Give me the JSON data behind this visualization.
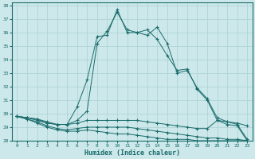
{
  "xlabel": "Humidex (Indice chaleur)",
  "bg_color": "#cce8ea",
  "grid_color": "#b0d4d6",
  "line_color": "#1a6b6b",
  "xlim": [
    -0.5,
    23.5
  ],
  "ylim": [
    28,
    38.2
  ],
  "x_ticks": [
    0,
    1,
    2,
    3,
    4,
    5,
    6,
    7,
    8,
    9,
    10,
    11,
    12,
    13,
    14,
    15,
    16,
    17,
    18,
    19,
    20,
    21,
    22,
    23
  ],
  "y_ticks": [
    28,
    29,
    30,
    31,
    32,
    33,
    34,
    35,
    36,
    37,
    38
  ],
  "hours": [
    0,
    1,
    2,
    3,
    4,
    5,
    6,
    7,
    8,
    9,
    10,
    11,
    12,
    13,
    14,
    15,
    16,
    17,
    18,
    19,
    20,
    21,
    22,
    23
  ],
  "line_main": [
    29.8,
    29.7,
    29.6,
    29.3,
    29.2,
    29.2,
    30.5,
    32.5,
    35.7,
    35.8,
    37.7,
    36.0,
    36.0,
    36.2,
    35.5,
    34.3,
    33.2,
    33.3,
    31.8,
    31.0,
    29.5,
    29.2,
    29.1,
    28.0
  ],
  "line_upper": [
    29.8,
    29.7,
    29.6,
    29.4,
    29.2,
    29.2,
    29.5,
    30.2,
    35.2,
    36.1,
    37.5,
    36.2,
    36.0,
    35.8,
    36.4,
    35.2,
    33.0,
    33.2,
    31.9,
    31.1,
    29.7,
    29.4,
    29.2,
    28.1
  ],
  "line_mid": [
    29.8,
    29.7,
    29.5,
    29.3,
    29.2,
    29.2,
    29.3,
    29.5,
    29.5,
    29.5,
    29.5,
    29.5,
    29.5,
    29.4,
    29.3,
    29.2,
    29.1,
    29.0,
    28.9,
    28.9,
    29.5,
    29.4,
    29.3,
    29.1
  ],
  "line_low": [
    29.8,
    29.6,
    29.4,
    29.1,
    28.9,
    28.8,
    28.9,
    29.0,
    29.0,
    29.0,
    29.0,
    29.0,
    28.9,
    28.8,
    28.7,
    28.6,
    28.5,
    28.4,
    28.3,
    28.2,
    28.2,
    28.1,
    28.1,
    28.0
  ],
  "line_min": [
    29.8,
    29.6,
    29.3,
    29.0,
    28.8,
    28.7,
    28.7,
    28.8,
    28.7,
    28.6,
    28.5,
    28.5,
    28.4,
    28.3,
    28.2,
    28.1,
    28.1,
    28.1,
    28.0,
    28.0,
    28.0,
    28.0,
    28.0,
    28.0
  ]
}
